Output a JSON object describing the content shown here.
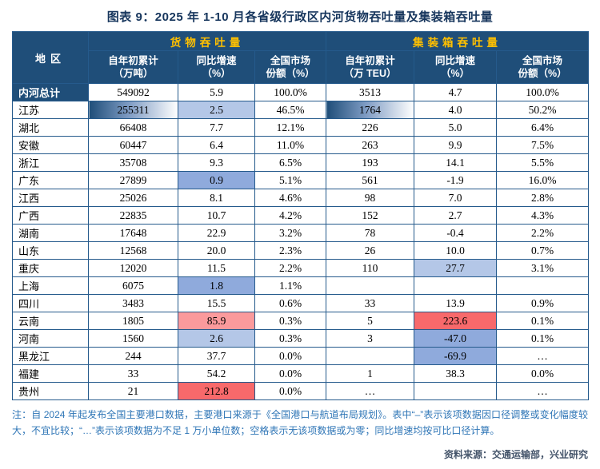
{
  "colors": {
    "header_bg": "#1F4E79",
    "header_text": "#FFFFFF",
    "header_group_text": "#FFC000",
    "border": "#255A8C",
    "title_text": "#17365D",
    "note_text": "#2E75B6",
    "source_text": "#44546A",
    "hl_blue": "#8FAADC",
    "hl_blue_light": "#B4C7E7",
    "hl_red": "#F8696B",
    "hl_red_light": "#FB9A9C",
    "bar_start": "#1F4E79",
    "bar_end": "#FFFFFF"
  },
  "chart_data": {
    "type": "table",
    "title": "图表 9：2025 年 1-10 月各省级行政区内河货物吞吐量及集装箱吞吐量",
    "region_header": "地区",
    "group_headers": [
      "货物吞吐量",
      "集装箱吞吐量"
    ],
    "sub_headers": [
      "自年初累计\n（万吨）",
      "同比增速\n（%）",
      "全国市场\n份额（%）",
      "自年初累计\n（万 TEU）",
      "同比增速\n（%）",
      "全国市场\n份额（%）"
    ],
    "rows": [
      {
        "region": "内河总计",
        "is_total": true,
        "cells": [
          "549092",
          "5.9",
          "100.0%",
          "3513",
          "4.7",
          "100.0%"
        ]
      },
      {
        "region": "江苏",
        "cells": [
          "255311",
          "2.5",
          "46.5%",
          "1764",
          "4.0",
          "50.2%"
        ],
        "styles": [
          "bar",
          "blue-light",
          null,
          "bar",
          null,
          null
        ]
      },
      {
        "region": "湖北",
        "cells": [
          "66408",
          "7.7",
          "12.1%",
          "226",
          "5.0",
          "6.4%"
        ]
      },
      {
        "region": "安徽",
        "cells": [
          "60447",
          "6.4",
          "11.0%",
          "263",
          "9.9",
          "7.5%"
        ]
      },
      {
        "region": "浙江",
        "cells": [
          "35708",
          "9.3",
          "6.5%",
          "193",
          "14.1",
          "5.5%"
        ]
      },
      {
        "region": "广东",
        "cells": [
          "27899",
          "0.9",
          "5.1%",
          "561",
          "-1.9",
          "16.0%"
        ],
        "styles": [
          null,
          "blue",
          null,
          null,
          null,
          null
        ]
      },
      {
        "region": "江西",
        "cells": [
          "25026",
          "8.1",
          "4.6%",
          "98",
          "7.0",
          "2.8%"
        ]
      },
      {
        "region": "广西",
        "cells": [
          "22835",
          "10.7",
          "4.2%",
          "152",
          "2.7",
          "4.3%"
        ]
      },
      {
        "region": "湖南",
        "cells": [
          "17648",
          "22.9",
          "3.2%",
          "78",
          "-0.4",
          "2.2%"
        ]
      },
      {
        "region": "山东",
        "cells": [
          "12568",
          "20.0",
          "2.3%",
          "26",
          "10.0",
          "0.7%"
        ]
      },
      {
        "region": "重庆",
        "cells": [
          "12020",
          "11.5",
          "2.2%",
          "110",
          "27.7",
          "3.1%"
        ],
        "styles": [
          null,
          null,
          null,
          null,
          "blue-light",
          null
        ]
      },
      {
        "region": "上海",
        "cells": [
          "6075",
          "1.8",
          "1.1%",
          "",
          "",
          ""
        ],
        "styles": [
          null,
          "blue",
          null,
          null,
          null,
          null
        ]
      },
      {
        "region": "四川",
        "cells": [
          "3483",
          "15.5",
          "0.6%",
          "33",
          "13.9",
          "0.9%"
        ]
      },
      {
        "region": "云南",
        "cells": [
          "1805",
          "85.9",
          "0.3%",
          "5",
          "223.6",
          "0.1%"
        ],
        "styles": [
          null,
          "red-light",
          null,
          null,
          "red",
          null
        ]
      },
      {
        "region": "河南",
        "cells": [
          "1560",
          "2.6",
          "0.3%",
          "3",
          "-47.0",
          "0.1%"
        ],
        "styles": [
          null,
          "blue-light",
          null,
          null,
          "blue",
          null
        ]
      },
      {
        "region": "黑龙江",
        "cells": [
          "244",
          "37.7",
          "0.0%",
          "",
          "-69.9",
          "…"
        ],
        "styles": [
          null,
          null,
          null,
          null,
          "blue",
          null
        ]
      },
      {
        "region": "福建",
        "cells": [
          "33",
          "54.2",
          "0.0%",
          "1",
          "38.3",
          "0.0%"
        ]
      },
      {
        "region": "贵州",
        "cells": [
          "21",
          "212.8",
          "0.0%",
          "…",
          "",
          "…"
        ],
        "styles": [
          null,
          "red",
          null,
          null,
          null,
          null
        ]
      }
    ]
  },
  "notes": "注：自 2024 年起发布全国主要港口数据，主要港口来源于《全国港口与航道布局规划》。表中“–”表示该项数据因口径调整或变化幅度较大，不宜比较；“…”表示该项数据为不足 1 万小单位数；空格表示无该项数据或为零；同比增速均按可比口径计算。",
  "source": "资料来源：交通运输部，兴业研究"
}
